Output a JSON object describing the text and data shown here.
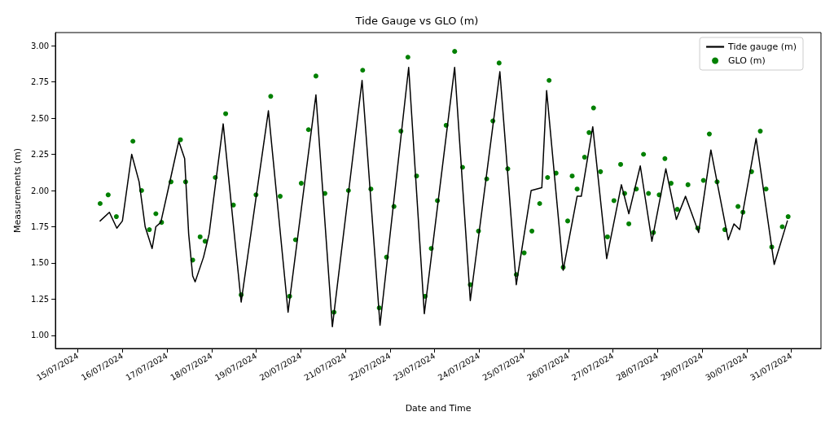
{
  "chart_data": {
    "type": "line",
    "title": "Tide Gauge vs GLO (m)",
    "xlabel": "Date and Time",
    "ylabel": "Measurements (m)",
    "xlim": [
      "2024-07-14T12:00",
      "2024-07-31T16:00"
    ],
    "ylim": [
      0.91,
      3.09
    ],
    "xticks": [
      {
        "value": "2024-07-15",
        "label": "15/07/2024"
      },
      {
        "value": "2024-07-16",
        "label": "16/07/2024"
      },
      {
        "value": "2024-07-17",
        "label": "17/07/2024"
      },
      {
        "value": "2024-07-18",
        "label": "18/07/2024"
      },
      {
        "value": "2024-07-19",
        "label": "19/07/2024"
      },
      {
        "value": "2024-07-20",
        "label": "20/07/2024"
      },
      {
        "value": "2024-07-21",
        "label": "21/07/2024"
      },
      {
        "value": "2024-07-22",
        "label": "22/07/2024"
      },
      {
        "value": "2024-07-23",
        "label": "23/07/2024"
      },
      {
        "value": "2024-07-24",
        "label": "24/07/2024"
      },
      {
        "value": "2024-07-25",
        "label": "25/07/2024"
      },
      {
        "value": "2024-07-26",
        "label": "26/07/2024"
      },
      {
        "value": "2024-07-27",
        "label": "27/07/2024"
      },
      {
        "value": "2024-07-28",
        "label": "28/07/2024"
      },
      {
        "value": "2024-07-29",
        "label": "29/07/2024"
      },
      {
        "value": "2024-07-30",
        "label": "30/07/2024"
      },
      {
        "value": "2024-07-31",
        "label": "31/07/2024"
      }
    ],
    "yticks": [
      {
        "value": 1,
        "label": "1.00"
      },
      {
        "value": 1.25,
        "label": "1.25"
      },
      {
        "value": 1.5,
        "label": "1.50"
      },
      {
        "value": 1.75,
        "label": "1.75"
      },
      {
        "value": 2,
        "label": "2.00"
      },
      {
        "value": 2.25,
        "label": "2.25"
      },
      {
        "value": 2.5,
        "label": "2.50"
      },
      {
        "value": 2.75,
        "label": "2.75"
      },
      {
        "value": 3,
        "label": "3.00"
      }
    ],
    "grid": false,
    "legend": "top right",
    "series": [
      {
        "name": "Tide gauge (m)",
        "color": "#000000",
        "marker": "none",
        "line_style": "solid",
        "x": [
          "2024-07-15T12:00",
          "2024-07-15T17:00",
          "2024-07-15T21:00",
          "2024-07-16T00:00",
          "2024-07-16T05:00",
          "2024-07-16T09:00",
          "2024-07-16T12:15",
          "2024-07-16T16:00",
          "2024-07-16T18:00",
          "2024-07-16T20:40",
          "2024-07-17T00:40",
          "2024-07-17T06:20",
          "2024-07-17T09:30",
          "2024-07-17T11:40",
          "2024-07-17T13:50",
          "2024-07-17T15:10",
          "2024-07-17T19:40",
          "2024-07-17T22:40",
          "2024-07-18T06:15",
          "2024-07-18T15:55",
          "2024-07-19T06:35",
          "2024-07-19T17:10",
          "2024-07-20T08:10",
          "2024-07-20T17:00",
          "2024-07-21T09:00",
          "2024-07-21T18:40",
          "2024-07-22T10:05",
          "2024-07-22T18:30",
          "2024-07-23T10:50",
          "2024-07-23T19:15",
          "2024-07-24T11:10",
          "2024-07-24T20:00",
          "2024-07-25T04:00",
          "2024-07-25T09:45",
          "2024-07-25T12:20",
          "2024-07-25T21:15",
          "2024-07-26T04:45",
          "2024-07-26T07:00",
          "2024-07-26T13:10",
          "2024-07-26T20:40",
          "2024-07-27T04:35",
          "2024-07-27T08:35",
          "2024-07-27T14:45",
          "2024-07-27T21:00",
          "2024-07-28T04:30",
          "2024-07-28T10:10",
          "2024-07-28T15:05",
          "2024-07-28T22:10",
          "2024-07-29T04:45",
          "2024-07-29T14:05",
          "2024-07-29T17:10",
          "2024-07-29T20:15",
          "2024-07-30T05:05",
          "2024-07-30T14:50",
          "2024-07-30T21:55"
        ],
        "values": [
          1.79,
          1.85,
          1.74,
          1.79,
          2.25,
          2.06,
          1.75,
          1.6,
          1.75,
          1.78,
          2.01,
          2.34,
          2.22,
          1.7,
          1.41,
          1.37,
          1.54,
          1.7,
          2.46,
          1.23,
          2.55,
          1.16,
          2.66,
          1.06,
          2.76,
          1.07,
          2.85,
          1.15,
          2.85,
          1.24,
          2.82,
          1.35,
          2.0,
          2.02,
          2.69,
          1.45,
          1.96,
          1.96,
          2.44,
          1.53,
          2.04,
          1.84,
          2.17,
          1.65,
          2.15,
          1.8,
          1.96,
          1.71,
          2.28,
          1.66,
          1.77,
          1.73,
          2.36,
          1.49,
          1.79
        ]
      },
      {
        "name": "GLO (m)",
        "type": "scatter",
        "color": "#008000",
        "marker": "circle",
        "x": [
          "2024-07-15T12:00",
          "2024-07-15T16:20",
          "2024-07-15T20:45",
          "2024-07-16T05:40",
          "2024-07-16T10:20",
          "2024-07-16T14:30",
          "2024-07-16T18:00",
          "2024-07-16T21:05",
          "2024-07-17T02:10",
          "2024-07-17T07:15",
          "2024-07-17T10:00",
          "2024-07-17T13:50",
          "2024-07-17T17:50",
          "2024-07-17T20:30",
          "2024-07-18T02:00",
          "2024-07-18T07:35",
          "2024-07-18T11:45",
          "2024-07-18T15:55",
          "2024-07-18T23:55",
          "2024-07-19T07:50",
          "2024-07-19T12:55",
          "2024-07-19T18:00",
          "2024-07-19T21:10",
          "2024-07-20T00:15",
          "2024-07-20T04:10",
          "2024-07-20T08:10",
          "2024-07-20T13:00",
          "2024-07-20T17:55",
          "2024-07-21T01:40",
          "2024-07-21T09:20",
          "2024-07-21T13:45",
          "2024-07-21T18:15",
          "2024-07-21T22:10",
          "2024-07-22T02:10",
          "2024-07-22T05:55",
          "2024-07-22T09:40",
          "2024-07-22T14:20",
          "2024-07-22T18:55",
          "2024-07-22T22:15",
          "2024-07-23T01:35",
          "2024-07-23T06:15",
          "2024-07-23T10:50",
          "2024-07-23T15:05",
          "2024-07-23T19:15",
          "2024-07-23T23:40",
          "2024-07-24T04:05",
          "2024-07-24T07:25",
          "2024-07-24T10:45",
          "2024-07-24T15:25",
          "2024-07-24T20:00",
          "2024-07-25T00:15",
          "2024-07-25T04:25",
          "2024-07-25T08:35",
          "2024-07-25T12:50",
          "2024-07-25T13:40",
          "2024-07-25T17:25",
          "2024-07-25T21:15",
          "2024-07-25T23:40",
          "2024-07-26T02:05",
          "2024-07-26T04:45",
          "2024-07-26T08:45",
          "2024-07-26T11:10",
          "2024-07-26T13:35",
          "2024-07-26T17:20",
          "2024-07-26T21:05",
          "2024-07-27T00:35",
          "2024-07-27T04:10",
          "2024-07-27T06:20",
          "2024-07-27T08:35",
          "2024-07-27T12:35",
          "2024-07-27T16:30",
          "2024-07-27T19:10",
          "2024-07-27T21:50",
          "2024-07-28T00:55",
          "2024-07-28T04:00",
          "2024-07-28T07:20",
          "2024-07-28T10:40",
          "2024-07-28T16:25",
          "2024-07-28T21:40",
          "2024-07-29T00:45",
          "2024-07-29T03:55",
          "2024-07-29T08:05",
          "2024-07-29T12:15",
          "2024-07-29T19:20",
          "2024-07-29T22:00",
          "2024-07-30T02:40",
          "2024-07-30T07:20",
          "2024-07-30T10:25",
          "2024-07-30T13:30",
          "2024-07-30T19:10",
          "2024-07-30T22:20"
        ],
        "values": [
          1.91,
          1.97,
          1.82,
          2.34,
          2.0,
          1.73,
          1.84,
          1.78,
          2.06,
          2.35,
          2.06,
          1.52,
          1.68,
          1.65,
          2.09,
          2.53,
          1.9,
          1.28,
          1.97,
          2.65,
          1.96,
          1.27,
          1.66,
          2.05,
          2.42,
          2.79,
          1.98,
          1.16,
          2.0,
          2.83,
          2.01,
          1.19,
          1.54,
          1.89,
          2.41,
          2.92,
          2.1,
          1.27,
          1.6,
          1.93,
          2.45,
          2.96,
          2.16,
          1.35,
          1.72,
          2.08,
          2.48,
          2.88,
          2.15,
          1.42,
          1.57,
          1.72,
          1.91,
          2.09,
          2.76,
          2.12,
          1.47,
          1.79,
          2.1,
          2.01,
          2.23,
          2.4,
          2.57,
          2.13,
          1.68,
          1.93,
          2.18,
          1.98,
          1.77,
          2.01,
          2.25,
          1.98,
          1.71,
          1.97,
          2.22,
          2.05,
          1.87,
          2.04,
          1.74,
          2.07,
          2.39,
          2.06,
          1.73,
          1.89,
          1.85,
          2.13,
          2.41,
          2.01,
          1.61,
          1.75,
          1.82
        ]
      }
    ]
  }
}
